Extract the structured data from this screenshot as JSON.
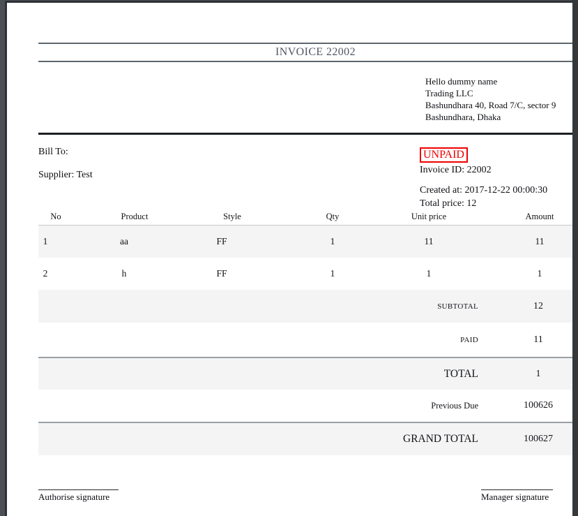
{
  "invoice": {
    "title": "INVOICE 22002",
    "company": {
      "address_lines": [
        "Hello dummy name",
        "Trading LLC",
        "Bashundhara 40, Road 7/C, sector 9",
        "Bashundhara, Dhaka"
      ]
    },
    "bill_to_label": "Bill To:",
    "supplier_line": "Supplier: Test",
    "status_badge": "UNPAID",
    "invoice_id_line": "Invoice ID: 22002",
    "created_line": "Created at: 2017-12-22 00:00:30",
    "total_price_line": "Total price: 12",
    "items_table": {
      "headers": [
        "No",
        "Product",
        "Style",
        "Qty",
        "Unit price",
        "Amount"
      ],
      "rows": [
        [
          "1",
          "aa",
          "FF",
          "1",
          "11",
          "11"
        ],
        [
          "2",
          "h",
          "FF",
          "1",
          "1",
          "1"
        ]
      ]
    },
    "totals": [
      {
        "label": "SUBTOTAL",
        "value": "12"
      },
      {
        "label": "PAID",
        "value": "11"
      },
      {
        "label": "TOTAL",
        "value": "1"
      },
      {
        "label": "Previous Due",
        "value": "100626"
      },
      {
        "label": "GRAND TOTAL",
        "value": "100627"
      }
    ],
    "signatures": {
      "left": "Authorise signature",
      "right": "Manager signature"
    },
    "colors": {
      "status_red": "#ee0000",
      "row_shade": "#f4f4f5",
      "heavy_rule": "#1c2023",
      "gray_rule": "#9aa0a5",
      "title_rule": "#5e666d",
      "title_text": "#4d5864",
      "frame_background": "#4c5054"
    }
  }
}
